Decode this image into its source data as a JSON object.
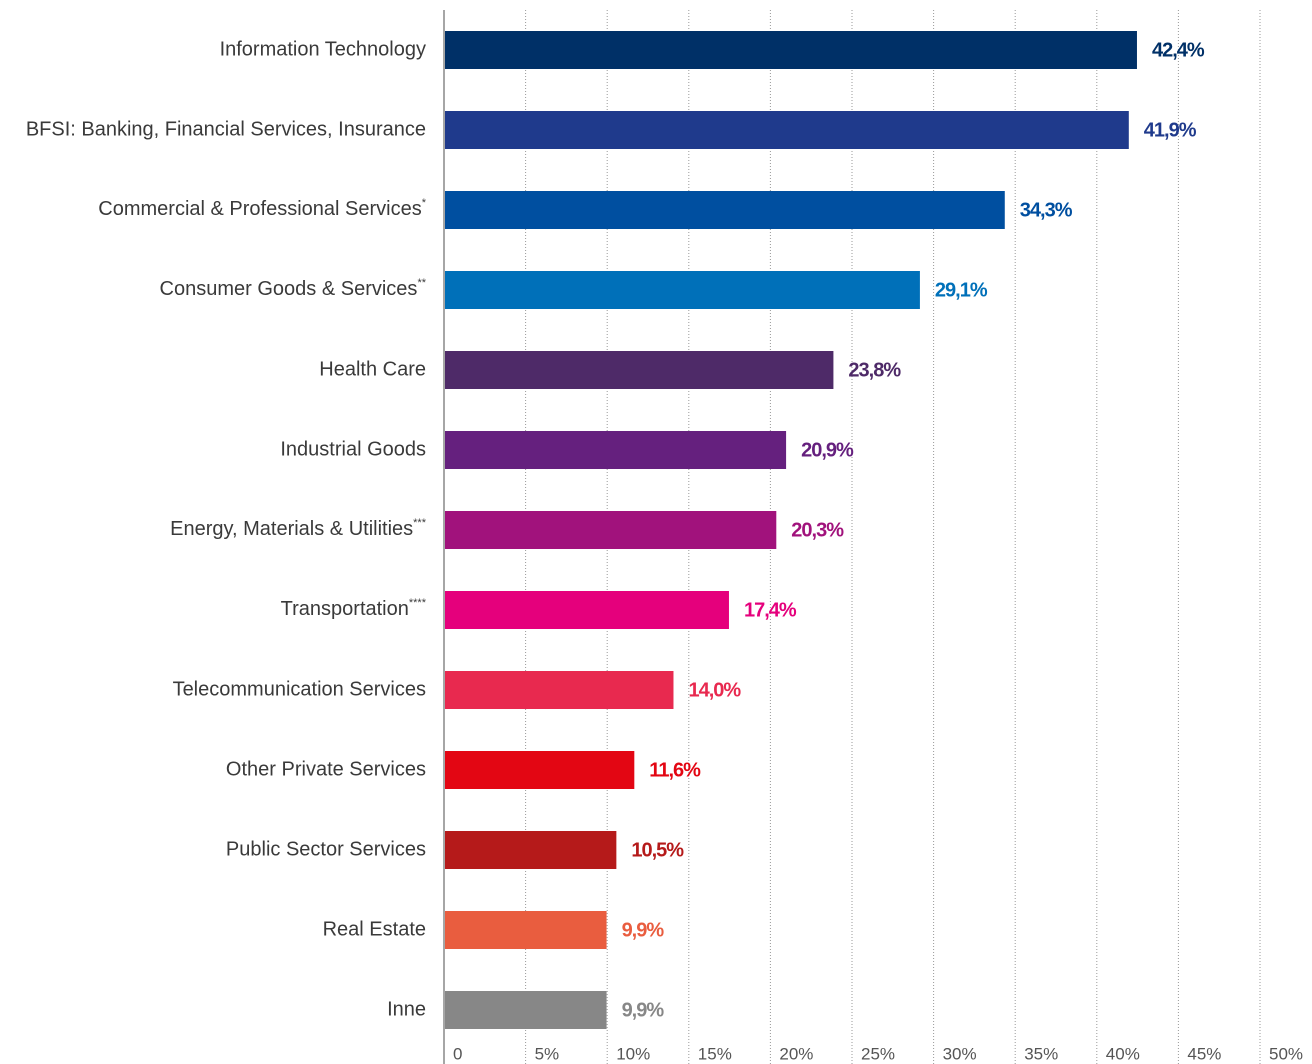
{
  "chart_data": {
    "type": "hbar",
    "categories": [
      "Information Technology",
      "BFSI: Banking, Financial Services, Insurance",
      "Commercial & Professional Services*",
      "Consumer Goods & Services**",
      "Health Care",
      "Industrial Goods",
      "Energy, Materials & Utilities***",
      "Transportation****",
      "Telecommunication Services",
      "Other Private Services",
      "Public Sector Services",
      "Real Estate",
      "Inne"
    ],
    "values": [
      42.4,
      41.9,
      34.3,
      29.1,
      23.8,
      20.9,
      20.3,
      17.4,
      14.0,
      11.6,
      10.5,
      9.9,
      9.9
    ],
    "value_labels": [
      "42,4%",
      "41,9%",
      "34,3%",
      "29,1%",
      "23,8%",
      "20,9%",
      "20,3%",
      "17,4%",
      "14,0%",
      "11,6%",
      "10,5%",
      "9,9%",
      "9,9%"
    ],
    "colors": [
      "#003067",
      "#1f3a8c",
      "#004fa0",
      "#0070b9",
      "#4e2a68",
      "#65207e",
      "#a1127c",
      "#e5007c",
      "#e8294f",
      "#e30613",
      "#b51a1a",
      "#e95d3f",
      "#878787"
    ],
    "xlim": [
      0,
      50
    ],
    "xticks": [
      0,
      {
        "value": 5,
        "label": "5%"
      },
      {
        "value": 10,
        "label": "10%"
      },
      {
        "value": 15,
        "label": "15%"
      },
      {
        "value": 20,
        "label": "20%"
      },
      {
        "value": 25,
        "label": "25%"
      },
      {
        "value": 30,
        "label": "30%"
      },
      {
        "value": 35,
        "label": "35%"
      },
      {
        "value": 40,
        "label": "40%"
      },
      {
        "value": 45,
        "label": "45%"
      },
      {
        "value": 50,
        "label": "50%"
      }
    ],
    "grid": true
  }
}
